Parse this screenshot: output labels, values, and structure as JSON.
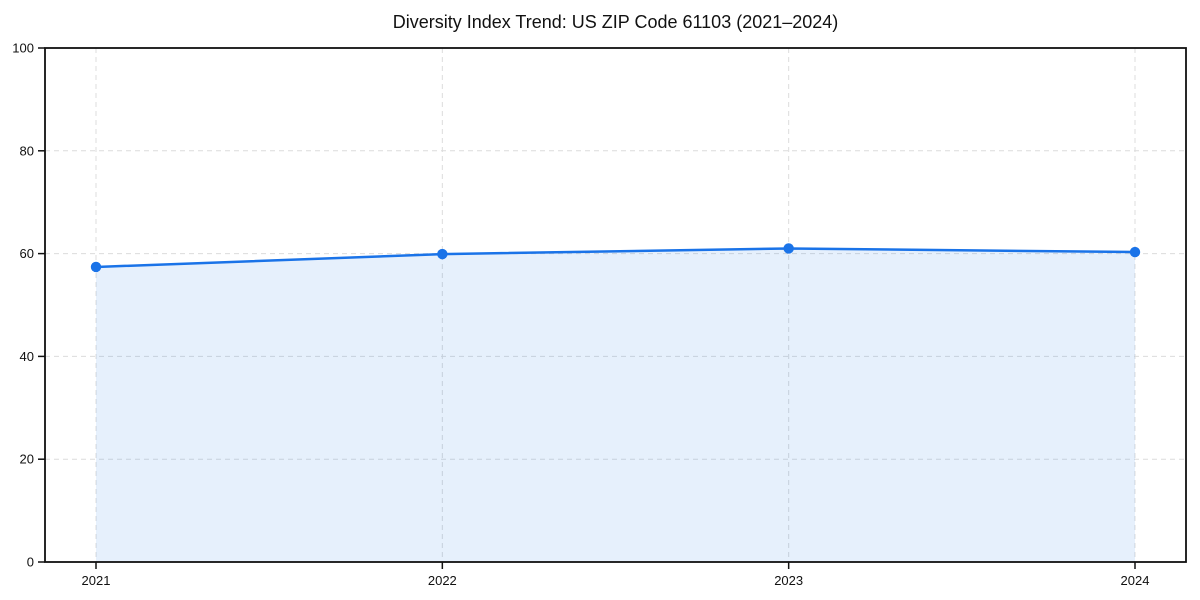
{
  "chart_data": {
    "type": "area",
    "title": "Diversity Index Trend: US ZIP Code 61103 (2021–2024)",
    "categories": [
      "2021",
      "2022",
      "2023",
      "2024"
    ],
    "series": [
      {
        "name": "Diversity Index",
        "values": [
          57.4,
          59.9,
          61.0,
          60.3
        ]
      }
    ],
    "xlabel": "",
    "ylabel": "",
    "ylim": [
      0,
      100
    ],
    "yticks": [
      0,
      20,
      40,
      60,
      80,
      100
    ],
    "grid": true,
    "grid_style": "dashed",
    "legend": false,
    "colors": {
      "line": "#1a73e8",
      "marker": "#1a73e8",
      "area_fill_rgba": "rgba(26,115,232,0.11)",
      "grid": "#dcdcdc",
      "axis": "#111111",
      "tick_label": "#111111",
      "background": "#ffffff"
    }
  }
}
